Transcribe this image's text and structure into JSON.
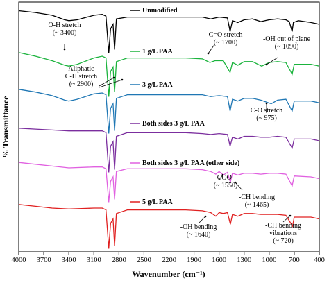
{
  "chart_data": {
    "type": "line",
    "xlabel": "Wavenumber (cm⁻¹)",
    "ylabel": "% Transmittance",
    "xlim": [
      4000,
      400
    ],
    "x_reversed": true,
    "x_ticks": [
      "4000",
      "3700",
      "3400",
      "3100",
      "2800",
      "2500",
      "2200",
      "1900",
      "1600",
      "1300",
      "1000",
      "700",
      "400"
    ],
    "y_tick_labels_shown": false,
    "grid": false,
    "legend": "inline",
    "series": [
      {
        "name": "Unmodified",
        "color": "#000000",
        "points": [
          [
            4000,
            25
          ],
          [
            3800,
            23
          ],
          [
            3600,
            20
          ],
          [
            3450,
            15
          ],
          [
            3400,
            14
          ],
          [
            3300,
            15
          ],
          [
            3100,
            20
          ],
          [
            3000,
            21
          ],
          [
            2955,
            19
          ],
          [
            2922,
            -22
          ],
          [
            2900,
            5
          ],
          [
            2870,
            10
          ],
          [
            2852,
            -18
          ],
          [
            2830,
            16
          ],
          [
            2700,
            18
          ],
          [
            2000,
            18
          ],
          [
            1800,
            18
          ],
          [
            1700,
            16
          ],
          [
            1600,
            18
          ],
          [
            1500,
            17
          ],
          [
            1468,
            2
          ],
          [
            1440,
            14
          ],
          [
            1375,
            12
          ],
          [
            1300,
            15
          ],
          [
            1200,
            16
          ],
          [
            1100,
            13
          ],
          [
            1000,
            15
          ],
          [
            900,
            16
          ],
          [
            800,
            15
          ],
          [
            760,
            13
          ],
          [
            725,
            2
          ],
          [
            710,
            12
          ],
          [
            650,
            14
          ],
          [
            500,
            12
          ],
          [
            400,
            10
          ]
        ]
      },
      {
        "name": "1 g/L PAA",
        "color": "#1ab33c",
        "points": [
          [
            4000,
            24
          ],
          [
            3800,
            20
          ],
          [
            3600,
            15
          ],
          [
            3450,
            10
          ],
          [
            3400,
            9
          ],
          [
            3300,
            11
          ],
          [
            3100,
            18
          ],
          [
            3000,
            20
          ],
          [
            2955,
            18
          ],
          [
            2922,
            -25
          ],
          [
            2900,
            3
          ],
          [
            2870,
            8
          ],
          [
            2852,
            -20
          ],
          [
            2830,
            14
          ],
          [
            2700,
            18
          ],
          [
            2000,
            18
          ],
          [
            1800,
            17
          ],
          [
            1710,
            13
          ],
          [
            1650,
            15
          ],
          [
            1550,
            15
          ],
          [
            1468,
            2
          ],
          [
            1440,
            13
          ],
          [
            1375,
            10
          ],
          [
            1300,
            14
          ],
          [
            1200,
            14
          ],
          [
            1090,
            9
          ],
          [
            1000,
            13
          ],
          [
            900,
            14
          ],
          [
            800,
            13
          ],
          [
            725,
            0
          ],
          [
            700,
            11
          ],
          [
            500,
            11
          ],
          [
            400,
            9
          ]
        ]
      },
      {
        "name": "3 g/L PAA",
        "color": "#1f77b4",
        "points": [
          [
            4000,
            24
          ],
          [
            3800,
            21
          ],
          [
            3600,
            17
          ],
          [
            3450,
            12
          ],
          [
            3400,
            11
          ],
          [
            3300,
            13
          ],
          [
            3100,
            19
          ],
          [
            3000,
            20
          ],
          [
            2955,
            18
          ],
          [
            2922,
            -25
          ],
          [
            2900,
            3
          ],
          [
            2870,
            8
          ],
          [
            2852,
            -22
          ],
          [
            2830,
            14
          ],
          [
            2700,
            18
          ],
          [
            2000,
            18
          ],
          [
            1800,
            18
          ],
          [
            1700,
            16
          ],
          [
            1600,
            17
          ],
          [
            1500,
            16
          ],
          [
            1468,
            0
          ],
          [
            1440,
            13
          ],
          [
            1375,
            11
          ],
          [
            1300,
            14
          ],
          [
            1200,
            14
          ],
          [
            1100,
            12
          ],
          [
            975,
            8
          ],
          [
            900,
            12
          ],
          [
            800,
            13
          ],
          [
            725,
            0
          ],
          [
            700,
            11
          ],
          [
            500,
            11
          ],
          [
            400,
            9
          ]
        ]
      },
      {
        "name": "Both sides 3 g/L PAA",
        "color": "#7b2e9e",
        "points": [
          [
            4000,
            24
          ],
          [
            3800,
            23
          ],
          [
            3600,
            22
          ],
          [
            3400,
            21
          ],
          [
            3100,
            21
          ],
          [
            3000,
            21
          ],
          [
            2955,
            19
          ],
          [
            2922,
            -25
          ],
          [
            2900,
            4
          ],
          [
            2870,
            9
          ],
          [
            2852,
            -22
          ],
          [
            2830,
            15
          ],
          [
            2700,
            19
          ],
          [
            2000,
            19
          ],
          [
            1800,
            18
          ],
          [
            1700,
            17
          ],
          [
            1600,
            18
          ],
          [
            1500,
            17
          ],
          [
            1468,
            4
          ],
          [
            1440,
            14
          ],
          [
            1375,
            12
          ],
          [
            1300,
            15
          ],
          [
            1200,
            15
          ],
          [
            1100,
            14
          ],
          [
            1000,
            14
          ],
          [
            900,
            15
          ],
          [
            800,
            14
          ],
          [
            725,
            2
          ],
          [
            700,
            12
          ],
          [
            500,
            12
          ],
          [
            400,
            10
          ]
        ]
      },
      {
        "name": "Both sides 3 g/L PAA (other side)",
        "color": "#e060e0",
        "points": [
          [
            4000,
            26
          ],
          [
            3800,
            24
          ],
          [
            3600,
            22
          ],
          [
            3400,
            20
          ],
          [
            3100,
            21
          ],
          [
            3000,
            21
          ],
          [
            2955,
            19
          ],
          [
            2922,
            -18
          ],
          [
            2900,
            5
          ],
          [
            2870,
            10
          ],
          [
            2852,
            -15
          ],
          [
            2830,
            16
          ],
          [
            2700,
            19
          ],
          [
            2000,
            19
          ],
          [
            1800,
            18
          ],
          [
            1700,
            16
          ],
          [
            1640,
            13
          ],
          [
            1600,
            16
          ],
          [
            1550,
            12
          ],
          [
            1500,
            15
          ],
          [
            1465,
            4
          ],
          [
            1440,
            14
          ],
          [
            1375,
            12
          ],
          [
            1300,
            14
          ],
          [
            1200,
            14
          ],
          [
            1100,
            13
          ],
          [
            1000,
            14
          ],
          [
            900,
            14
          ],
          [
            800,
            13
          ],
          [
            725,
            0
          ],
          [
            700,
            11
          ],
          [
            500,
            10
          ],
          [
            400,
            8
          ]
        ]
      },
      {
        "name": "5 g/L PAA",
        "color": "#e02020",
        "points": [
          [
            4000,
            24
          ],
          [
            3800,
            22
          ],
          [
            3600,
            20
          ],
          [
            3400,
            19
          ],
          [
            3100,
            20
          ],
          [
            3000,
            20
          ],
          [
            2955,
            18
          ],
          [
            2922,
            -25
          ],
          [
            2900,
            3
          ],
          [
            2870,
            8
          ],
          [
            2852,
            -22
          ],
          [
            2830,
            14
          ],
          [
            2700,
            18
          ],
          [
            2000,
            18
          ],
          [
            1800,
            17
          ],
          [
            1700,
            15
          ],
          [
            1640,
            11
          ],
          [
            1600,
            15
          ],
          [
            1550,
            14
          ],
          [
            1500,
            15
          ],
          [
            1465,
            2
          ],
          [
            1440,
            13
          ],
          [
            1375,
            11
          ],
          [
            1300,
            14
          ],
          [
            1200,
            14
          ],
          [
            1100,
            13
          ],
          [
            1000,
            13
          ],
          [
            900,
            13
          ],
          [
            800,
            12
          ],
          [
            720,
            0
          ],
          [
            700,
            10
          ],
          [
            500,
            10
          ],
          [
            400,
            8
          ]
        ]
      }
    ],
    "annotations": [
      {
        "lines": [
          "O-H stretch",
          "(~ 3400)"
        ],
        "at": [
          3400,
          0
        ]
      },
      {
        "lines": [
          "Aliphatic",
          "C-H stretch",
          "(~ 2900)"
        ],
        "at": [
          2900,
          1
        ]
      },
      {
        "lines": [
          "C=O stretch",
          "(~ 1700)"
        ],
        "at": [
          1700,
          1
        ]
      },
      {
        "lines": [
          "-OH out of plane",
          "(~ 1090)"
        ],
        "at": [
          1090,
          1
        ]
      },
      {
        "lines": [
          "C-O stretch",
          "(~ 975)"
        ],
        "at": [
          975,
          2
        ]
      },
      {
        "lines": [
          "COO-",
          "(~ 1550)"
        ],
        "at": [
          1550,
          4
        ]
      },
      {
        "lines": [
          "-CH bending",
          "(~ 1465)"
        ],
        "at": [
          1465,
          4
        ]
      },
      {
        "lines": [
          "-OH bending",
          "(~ 1640)"
        ],
        "at": [
          1640,
          5
        ]
      },
      {
        "lines": [
          "-CH bending",
          "vibrations",
          "(~ 720)"
        ],
        "at": [
          720,
          5
        ]
      }
    ]
  }
}
